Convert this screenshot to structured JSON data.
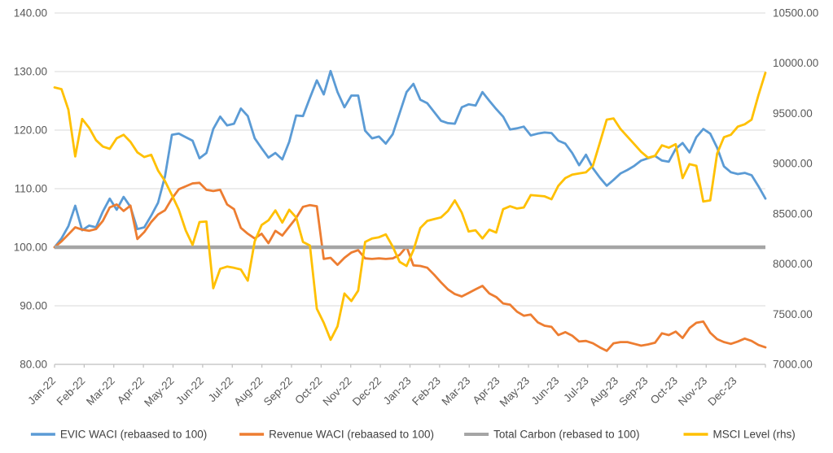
{
  "chart_data": {
    "type": "line",
    "title": "",
    "legend_position": "bottom",
    "grid": true,
    "colors": {
      "grid": "#d9d9d9",
      "axis_line": "#bfbfbf",
      "tick_text": "#595959",
      "legend_text": "#404040",
      "background": "#ffffff"
    },
    "left_axis": {
      "min": 80,
      "max": 140,
      "tick_labels": [
        "140.00",
        "130.00",
        "120.00",
        "110.00",
        "100.00",
        "90.00",
        "80.00"
      ]
    },
    "right_axis": {
      "min": 7000,
      "max": 10500,
      "tick_labels": [
        "10500.00",
        "10000.00",
        "9500.00",
        "9000.00",
        "8500.00",
        "8000.00",
        "7500.00",
        "7000.00"
      ]
    },
    "x_axis": {
      "categories": [
        "Jan-22",
        "Feb-22",
        "Mar-22",
        "Apr-22",
        "May-22",
        "Jun-22",
        "Jul-22",
        "Aug-22",
        "Sep-22",
        "Oct-22",
        "Nov-22",
        "Dec-22",
        "Jan-23",
        "Feb-23",
        "Mar-23",
        "Apr-23",
        "May-23",
        "Jun-23",
        "Jul-23",
        "Aug-23",
        "Sep-23",
        "Oct-23",
        "Nov-23",
        "Dec-23"
      ],
      "points_per_series": 104,
      "frequency": "weekly"
    },
    "series": [
      {
        "name": "EVIC WACI (rebaased to 100)",
        "color": "#5B9BD5",
        "axis": "left",
        "values": [
          100.0,
          101.5,
          103.6,
          107.1,
          102.9,
          103.7,
          103.4,
          106.1,
          108.3,
          106.4,
          108.6,
          106.9,
          103.1,
          103.4,
          105.4,
          107.6,
          112.1,
          119.2,
          119.4,
          118.8,
          118.2,
          115.2,
          116.1,
          120.2,
          122.3,
          120.8,
          121.1,
          123.7,
          122.4,
          118.6,
          116.9,
          115.3,
          116.1,
          115.0,
          118.0,
          122.5,
          122.4,
          125.5,
          128.5,
          126.1,
          130.1,
          126.5,
          123.9,
          125.9,
          125.9,
          119.9,
          118.6,
          118.9,
          117.7,
          119.3,
          122.9,
          126.5,
          127.9,
          125.2,
          124.6,
          123.1,
          121.6,
          121.2,
          121.1,
          123.9,
          124.4,
          124.2,
          126.5,
          125.0,
          123.6,
          122.3,
          120.1,
          120.3,
          120.6,
          119.1,
          119.4,
          119.6,
          119.5,
          118.2,
          117.7,
          116.1,
          114.0,
          115.8,
          113.5,
          111.9,
          110.5,
          111.5,
          112.6,
          113.2,
          113.9,
          114.8,
          115.2,
          115.6,
          114.8,
          114.6,
          116.8,
          117.8,
          116.2,
          118.8,
          120.2,
          119.4,
          117.0,
          113.8,
          112.8,
          112.5,
          112.7,
          112.3,
          110.4,
          108.3
        ]
      },
      {
        "name": "Revenue WACI (rebaased to 100)",
        "color": "#ED7D31",
        "axis": "left",
        "values": [
          100.0,
          101.0,
          102.2,
          103.4,
          103.0,
          102.8,
          103.1,
          104.5,
          106.8,
          107.3,
          106.2,
          107.1,
          101.4,
          102.6,
          104.3,
          105.6,
          106.3,
          108.3,
          109.9,
          110.4,
          110.9,
          111.0,
          109.8,
          109.6,
          109.8,
          107.3,
          106.5,
          103.3,
          102.3,
          101.5,
          102.3,
          100.7,
          102.8,
          102.0,
          103.5,
          105.0,
          106.9,
          107.2,
          107.0,
          98.0,
          98.2,
          97.0,
          98.2,
          99.1,
          99.5,
          98.1,
          98.0,
          98.1,
          98.0,
          98.1,
          98.7,
          100.1,
          96.9,
          96.8,
          96.5,
          95.3,
          94.0,
          92.8,
          92.0,
          91.6,
          92.2,
          92.8,
          93.4,
          92.1,
          91.5,
          90.4,
          90.2,
          89.0,
          88.3,
          88.5,
          87.2,
          86.6,
          86.4,
          85.0,
          85.5,
          84.9,
          83.9,
          84.0,
          83.6,
          82.9,
          82.3,
          83.6,
          83.8,
          83.8,
          83.5,
          83.2,
          83.4,
          83.7,
          85.3,
          85.0,
          85.6,
          84.5,
          86.2,
          87.1,
          87.3,
          85.4,
          84.3,
          83.8,
          83.5,
          83.9,
          84.4,
          84.0,
          83.3,
          82.9
        ]
      },
      {
        "name": "Total Carbon (rebased to 100)",
        "color": "#A5A5A5",
        "axis": "left",
        "constant": 100
      },
      {
        "name": "MSCI Level (rhs)",
        "color": "#FFC000",
        "axis": "right",
        "values": [
          9759,
          9742,
          9537,
          9071,
          9444,
          9357,
          9234,
          9170,
          9147,
          9252,
          9287,
          9217,
          9112,
          9065,
          9088,
          8931,
          8826,
          8686,
          8540,
          8336,
          8190,
          8418,
          8423,
          7758,
          7951,
          7974,
          7962,
          7945,
          7834,
          8225,
          8388,
          8435,
          8534,
          8412,
          8540,
          8464,
          8219,
          8184,
          7554,
          7414,
          7245,
          7379,
          7706,
          7630,
          7735,
          8219,
          8254,
          8266,
          8295,
          8173,
          8021,
          7980,
          8137,
          8359,
          8429,
          8447,
          8464,
          8528,
          8633,
          8511,
          8324,
          8336,
          8254,
          8342,
          8313,
          8546,
          8575,
          8552,
          8563,
          8686,
          8680,
          8674,
          8645,
          8779,
          8855,
          8890,
          8902,
          8913,
          8978,
          9205,
          9438,
          9450,
          9345,
          9269,
          9193,
          9117,
          9059,
          9077,
          9182,
          9158,
          9193,
          8855,
          8995,
          8978,
          8622,
          8633,
          9100,
          9263,
          9287,
          9368,
          9392,
          9438,
          9683,
          9905
        ]
      }
    ]
  }
}
